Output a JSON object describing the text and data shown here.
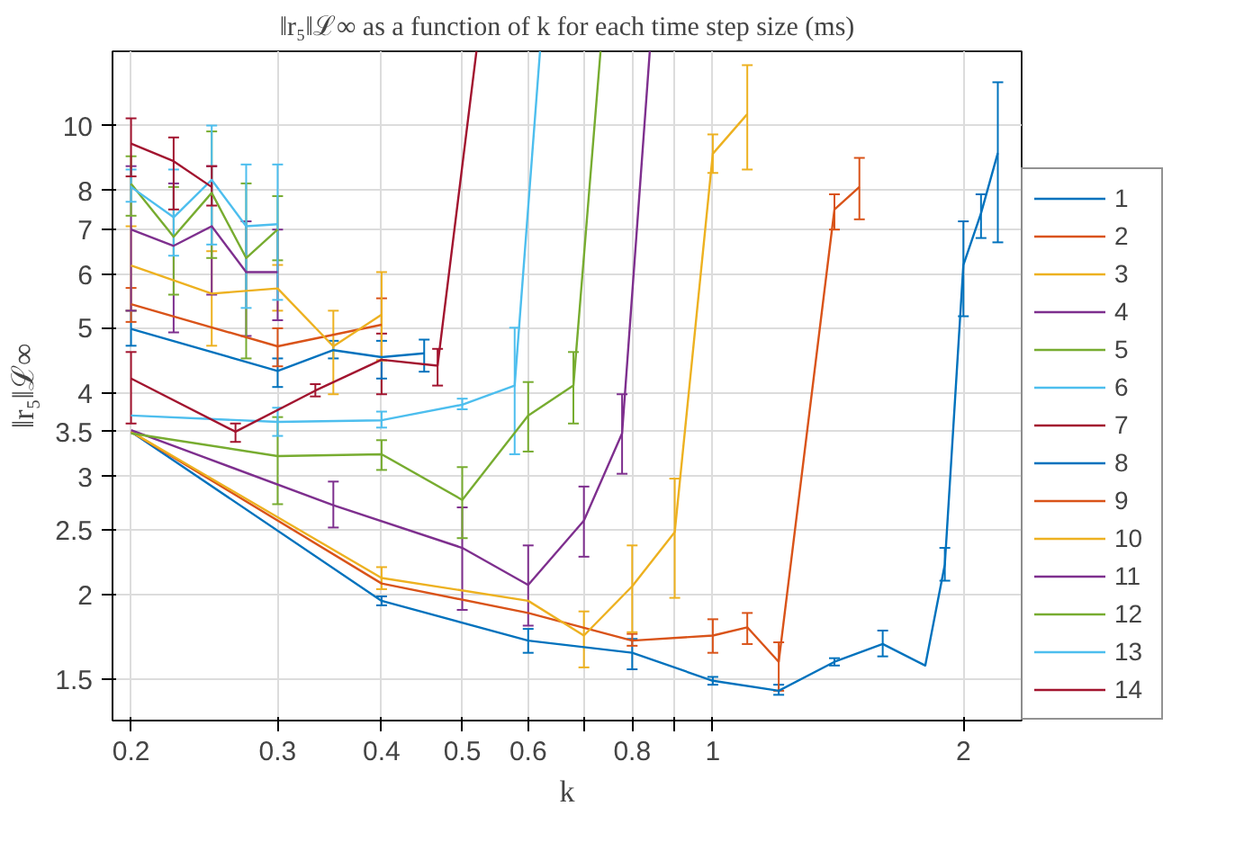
{
  "chart_data": {
    "type": "line",
    "title": "‖r₅‖ℒ∞ as a function of k for each time step size (ms)",
    "xlabel": "k",
    "ylabel": "‖r₅‖ℒ∞",
    "log": "xy",
    "grid": true,
    "legend": "right",
    "marker": "none",
    "line_style": "solid",
    "xlim": [
      0.19,
      2.35
    ],
    "ylim": [
      1.3,
      12.9
    ],
    "xticks": [
      0.2,
      0.3,
      0.4,
      0.5,
      0.6,
      {
        "value": 0.7,
        "label": null
      },
      0.8,
      {
        "value": 0.9,
        "label": null
      },
      1,
      2
    ],
    "yticks": [
      1.5,
      2,
      2.5,
      3,
      3.5,
      4,
      5,
      6,
      7,
      8,
      10
    ],
    "series": [
      {
        "name": "1",
        "color": "#0072bd",
        "x": [
          0.2,
          0.4,
          0.6,
          0.8,
          1.0,
          1.2,
          1.4,
          1.6,
          1.8,
          1.9,
          2.0,
          2.1,
          2.2
        ],
        "values": [
          3.5,
          1.96,
          1.71,
          1.64,
          1.49,
          1.44,
          1.59,
          1.69,
          1.57,
          2.22,
          6.2,
          7.4,
          9.1
        ],
        "errors": [
          null,
          [
            1.93,
            1.99
          ],
          [
            1.64,
            1.78
          ],
          [
            1.55,
            1.72
          ],
          [
            1.47,
            1.51
          ],
          [
            1.42,
            1.47
          ],
          [
            1.57,
            1.61
          ],
          [
            1.62,
            1.77
          ],
          null,
          [
            2.1,
            2.35
          ],
          [
            5.2,
            7.2
          ],
          [
            6.8,
            7.9
          ],
          [
            6.7,
            11.6
          ]
        ]
      },
      {
        "name": "2",
        "color": "#d95319",
        "x": [
          0.2,
          0.4,
          0.6,
          0.8,
          1.0,
          1.1,
          1.2,
          1.4,
          1.5
        ],
        "values": [
          3.5,
          2.08,
          1.88,
          1.71,
          1.74,
          1.79,
          1.59,
          7.5,
          8.1
        ],
        "errors": [
          null,
          null,
          null,
          [
            1.68,
            1.75
          ],
          [
            1.64,
            1.84
          ],
          [
            1.69,
            1.88
          ],
          [
            1.44,
            1.7
          ],
          [
            7.0,
            7.9
          ],
          [
            7.25,
            8.95
          ]
        ]
      },
      {
        "name": "3",
        "color": "#edb120",
        "x": [
          0.2,
          0.4,
          0.6,
          0.7,
          0.8,
          0.9,
          1.0,
          1.1
        ],
        "values": [
          3.5,
          2.12,
          1.96,
          1.74,
          2.06,
          2.48,
          9.08,
          10.4
        ],
        "errors": [
          null,
          [
            2.04,
            2.2
          ],
          null,
          [
            1.56,
            1.89
          ],
          [
            1.76,
            2.37
          ],
          [
            1.98,
            2.98
          ],
          [
            8.5,
            9.7
          ],
          [
            8.6,
            12.3
          ]
        ]
      },
      {
        "name": "4",
        "color": "#7e2f8e",
        "x": [
          0.2,
          0.35,
          0.5,
          0.6,
          0.7,
          0.778,
          0.84
        ],
        "values": [
          3.52,
          2.72,
          2.35,
          2.07,
          2.58,
          3.48,
          12.9
        ],
        "errors": [
          null,
          [
            2.52,
            2.95
          ],
          [
            1.9,
            2.7
          ],
          [
            1.8,
            2.37
          ],
          [
            2.28,
            2.9
          ],
          [
            3.03,
            3.98
          ],
          null
        ]
      },
      {
        "name": "5",
        "color": "#77ac30",
        "x": [
          0.2,
          0.3,
          0.4,
          0.5,
          0.6,
          0.68,
          0.733
        ],
        "values": [
          3.48,
          3.22,
          3.24,
          2.77,
          3.7,
          4.1,
          12.9
        ],
        "errors": [
          null,
          [
            2.73,
            3.68
          ],
          [
            3.07,
            3.4
          ],
          [
            2.43,
            3.1
          ],
          [
            3.27,
            4.15
          ],
          [
            3.6,
            4.6
          ],
          null
        ]
      },
      {
        "name": "6",
        "color": "#4dbeee",
        "x": [
          0.2,
          0.3,
          0.4,
          0.5,
          0.578,
          0.62
        ],
        "values": [
          3.7,
          3.62,
          3.64,
          3.84,
          4.1,
          12.9
        ],
        "errors": [
          null,
          [
            3.45,
            3.8
          ],
          [
            3.55,
            3.75
          ],
          [
            3.78,
            3.92
          ],
          [
            3.24,
            5.0
          ],
          null
        ]
      },
      {
        "name": "7",
        "color": "#a2142f",
        "x": [
          0.2,
          0.267,
          0.333,
          0.4,
          0.467,
          0.52
        ],
        "values": [
          4.2,
          3.5,
          4.03,
          4.48,
          4.39,
          12.9
        ],
        "errors": [
          [
            3.6,
            4.6
          ],
          [
            3.38,
            3.6
          ],
          [
            3.95,
            4.12
          ],
          [
            3.98,
            4.9
          ],
          [
            4.1,
            4.65
          ],
          null
        ]
      },
      {
        "name": "8",
        "color": "#0072bd",
        "x": [
          0.2,
          0.3,
          0.35,
          0.4,
          0.45
        ],
        "values": [
          4.98,
          4.31,
          4.63,
          4.52,
          4.58
        ],
        "errors": [
          [
            4.7,
            5.3
          ],
          [
            4.08,
            4.5
          ],
          [
            4.5,
            4.78
          ],
          [
            4.2,
            4.78
          ],
          [
            4.3,
            4.8
          ]
        ]
      },
      {
        "name": "9",
        "color": "#d95319",
        "x": [
          0.2,
          0.3,
          0.4
        ],
        "values": [
          5.42,
          4.69,
          5.05
        ],
        "errors": [
          [
            5.1,
            5.73
          ],
          [
            4.38,
            4.99
          ],
          [
            4.47,
            5.53
          ]
        ]
      },
      {
        "name": "10",
        "color": "#edb120",
        "x": [
          0.2,
          0.25,
          0.3,
          0.35,
          0.4
        ],
        "values": [
          6.19,
          5.62,
          5.72,
          4.69,
          5.23
        ],
        "errors": [
          [
            5.3,
            7.08
          ],
          [
            4.7,
            6.5
          ],
          [
            5.3,
            6.2
          ],
          [
            3.98,
            5.3
          ],
          [
            4.47,
            6.05
          ]
        ]
      },
      {
        "name": "11",
        "color": "#7e2f8e",
        "x": [
          0.2,
          0.225,
          0.25,
          0.275,
          0.3
        ],
        "values": [
          7.0,
          6.62,
          7.08,
          6.05,
          6.05
        ],
        "errors": [
          [
            5.3,
            8.7
          ],
          [
            4.92,
            8.2
          ],
          [
            5.6,
            8.7
          ],
          [
            4.86,
            7.2
          ],
          [
            5.13,
            7.0
          ]
        ]
      },
      {
        "name": "12",
        "color": "#77ac30",
        "x": [
          0.2,
          0.225,
          0.25,
          0.275,
          0.3
        ],
        "values": [
          8.19,
          6.83,
          7.94,
          6.35,
          7.0
        ],
        "errors": [
          [
            7.34,
            9.0
          ],
          [
            5.6,
            8.1
          ],
          [
            6.35,
            9.8
          ],
          [
            4.5,
            8.2
          ],
          [
            6.3,
            7.85
          ]
        ]
      },
      {
        "name": "13",
        "color": "#4dbeee",
        "x": [
          0.2,
          0.225,
          0.25,
          0.275,
          0.3
        ],
        "values": [
          8.1,
          7.3,
          8.3,
          7.08,
          7.13
        ],
        "errors": [
          [
            7.7,
            8.6
          ],
          [
            6.4,
            8.6
          ],
          [
            6.65,
            10.0
          ],
          [
            5.35,
            8.75
          ],
          [
            5.5,
            8.75
          ]
        ]
      },
      {
        "name": "14",
        "color": "#a2142f",
        "x": [
          0.2,
          0.225,
          0.25
        ],
        "values": [
          9.4,
          8.85,
          8.1
        ],
        "errors": [
          [
            8.4,
            10.25
          ],
          [
            7.5,
            9.6
          ],
          [
            7.6,
            8.7
          ]
        ]
      }
    ]
  }
}
